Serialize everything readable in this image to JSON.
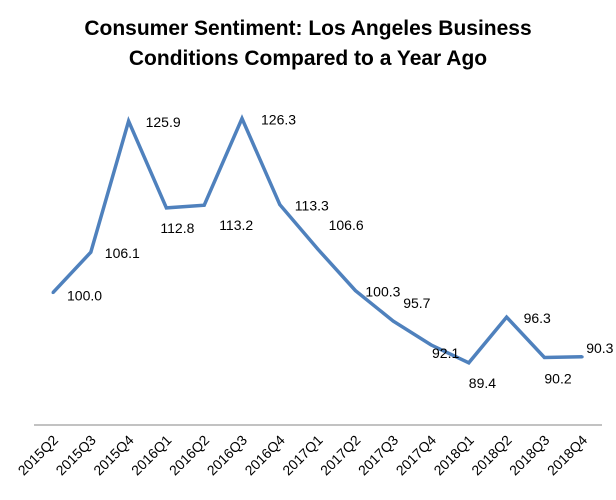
{
  "chart_data": {
    "type": "line",
    "title": "Consumer Sentiment: Los Angeles Business Conditions Compared to a Year Ago",
    "title_lines": [
      "Consumer Sentiment: Los Angeles Business",
      "Conditions Compared to a Year Ago"
    ],
    "xlabel": "",
    "ylabel": "",
    "categories": [
      "2015Q2",
      "2015Q3",
      "2015Q4",
      "2016Q1",
      "2016Q2",
      "2016Q3",
      "2016Q4",
      "2017Q1",
      "2017Q2",
      "2017Q3",
      "2017Q4",
      "2018Q1",
      "2018Q2",
      "2018Q3",
      "2018Q4"
    ],
    "series": [
      {
        "name": "Consumer Sentiment",
        "color": "#4F81BD",
        "values": [
          100.0,
          106.1,
          125.9,
          112.8,
          113.2,
          126.3,
          113.3,
          106.6,
          100.3,
          95.7,
          92.1,
          89.4,
          96.3,
          90.2,
          90.3
        ],
        "labels": [
          "100.0",
          "106.1",
          "125.9",
          "112.8",
          "113.2",
          "126.3",
          "113.3",
          "106.6",
          "100.3",
          "95.7",
          "92.1",
          "89.4",
          "96.3",
          "90.2",
          "90.3"
        ]
      }
    ],
    "ylim": [
      80,
      130
    ],
    "grid": false,
    "legend": "none",
    "axis_color": "#868686"
  }
}
